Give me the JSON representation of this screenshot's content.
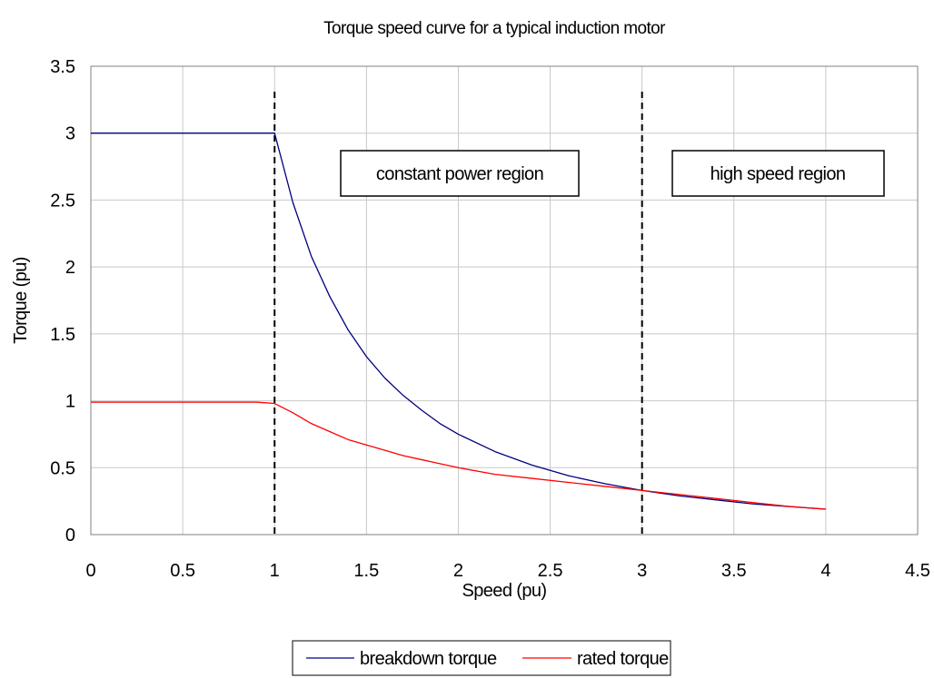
{
  "chart_data": {
    "type": "line",
    "title": "Torque speed curve for a typical induction motor",
    "xlabel": "Speed (pu)",
    "ylabel": "Torque (pu)",
    "xlim": [
      0,
      4.5
    ],
    "ylim": [
      0,
      3.5
    ],
    "xticks": [
      "0",
      "0.5",
      "1",
      "1.5",
      "2",
      "2.5",
      "3",
      "3.5",
      "4",
      "4.5"
    ],
    "yticks": [
      "0",
      "0.5",
      "1",
      "1.5",
      "2",
      "2.5",
      "3",
      "3.5"
    ],
    "grid": true,
    "legend_position": "bottom",
    "x": [
      0,
      0.5,
      0.9,
      1,
      1.1,
      1.2,
      1.3,
      1.4,
      1.5,
      1.6,
      1.7,
      1.8,
      1.9,
      2,
      2.2,
      2.4,
      2.6,
      2.8,
      3,
      3.2,
      3.4,
      3.6,
      3.8,
      4
    ],
    "series": [
      {
        "name": "breakdown torque",
        "color": "#000080",
        "values": [
          3,
          3,
          3,
          3,
          2.48,
          2.08,
          1.78,
          1.53,
          1.33,
          1.17,
          1.04,
          0.93,
          0.83,
          0.75,
          0.62,
          0.52,
          0.44,
          0.38,
          0.33,
          0.29,
          0.26,
          0.23,
          0.21,
          0.19
        ]
      },
      {
        "name": "rated torque",
        "color": "#ff0000",
        "values": [
          0.99,
          0.99,
          0.99,
          0.98,
          0.91,
          0.83,
          0.77,
          0.71,
          0.67,
          0.63,
          0.59,
          0.56,
          0.53,
          0.5,
          0.45,
          0.42,
          0.39,
          0.36,
          0.33,
          0.3,
          0.27,
          0.24,
          0.21,
          0.19
        ]
      }
    ],
    "reference_lines": [
      {
        "x": 1,
        "style": "dashed",
        "color": "#000000"
      },
      {
        "x": 3,
        "style": "dashed",
        "color": "#000000"
      }
    ],
    "annotations": [
      {
        "text": "constant power region"
      },
      {
        "text": "high speed region"
      }
    ]
  }
}
